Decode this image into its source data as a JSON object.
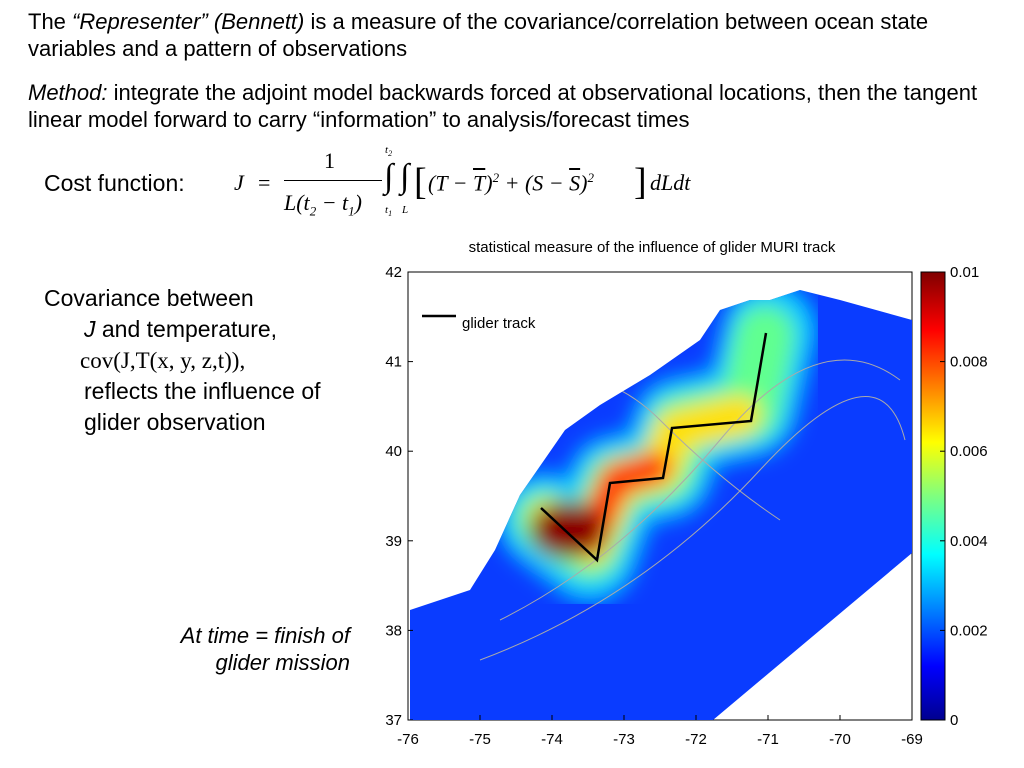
{
  "intro": {
    "prefix": "The",
    "emphasis": "“Representer” (Bennett)",
    "text": "is a measure of the covariance/correlation between ocean state variables and a pattern of observations"
  },
  "method": {
    "label": "Method:",
    "text": "integrate the adjoint model backwards forced at observational locations, then the tangent linear model forward to carry “information” to analysis/forecast times"
  },
  "cost_function": {
    "label": "Cost function:",
    "lhs": "J",
    "equals": "=",
    "numerator": "1",
    "denominator": [
      "L(t",
      "2",
      " − t",
      "1",
      ")"
    ],
    "outer_integral": {
      "upper": [
        "t",
        "2"
      ],
      "lower": [
        "t",
        "1"
      ]
    },
    "inner_integral": {
      "lower": "L"
    },
    "integrand": [
      "(T − ",
      "T",
      ")",
      "2",
      " + (S − ",
      "S",
      ")",
      "2"
    ],
    "differential": "dLdt"
  },
  "covariance": {
    "line1": "Covariance between",
    "symbol": "J",
    "line2": "and temperature,",
    "formula": "cov(J,T(x, y, z,t)),",
    "text": "reflects the influence of glider observation"
  },
  "note": "At time = finish of glider mission",
  "figure": {
    "title": "statistical measure of the influence of glider MURI track",
    "legend": "glider track",
    "xticks": [
      -76,
      -75,
      -74,
      -73,
      -72,
      -71,
      -70,
      -69
    ],
    "yticks": [
      42,
      41,
      40,
      39,
      38,
      37
    ],
    "colorbar_ticks": [
      0.01,
      0.008,
      0.006,
      0.004,
      0.002,
      0
    ]
  }
}
